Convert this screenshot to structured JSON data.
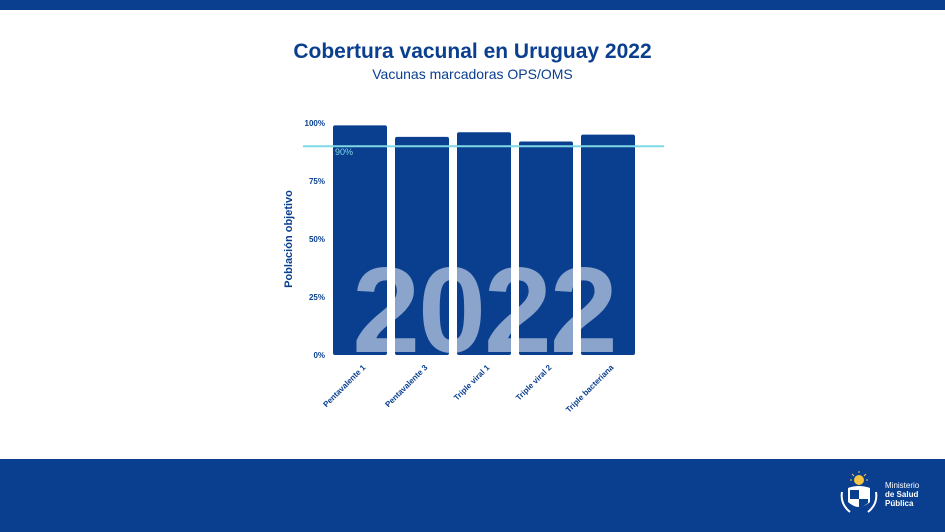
{
  "header": {
    "title": "Cobertura vacunal en Uruguay 2022",
    "subtitle": "Vacunas marcadoras OPS/OMS"
  },
  "chart_data": {
    "type": "bar",
    "title": "Cobertura vacunal en Uruguay 2022",
    "subtitle": "Vacunas marcadoras OPS/OMS",
    "xlabel": "",
    "ylabel": "Población objetivo",
    "categories": [
      "Pentavalente 1",
      "Pentavalente 3",
      "Triple viral 1",
      "Triple viral 2",
      "Triple bacteriana"
    ],
    "values": [
      99,
      94,
      96,
      92,
      95
    ],
    "ylim": [
      0,
      100
    ],
    "yticks": [
      "0%",
      "25%",
      "50%",
      "75%",
      "100%"
    ],
    "ytick_values": [
      0,
      25,
      50,
      75,
      100
    ],
    "reference_line": {
      "value": 90,
      "label": "90%",
      "color": "#7fd8e6"
    },
    "watermark": "2022",
    "bar_color": "#0a3f8f",
    "grid": false
  },
  "footer": {
    "logo_line1": "Ministerio",
    "logo_line2": "de Salud",
    "logo_line3": "Pública"
  },
  "colors": {
    "brand": "#0a3f8f",
    "target_line": "#7fd8e6",
    "background": "#ffffff"
  }
}
